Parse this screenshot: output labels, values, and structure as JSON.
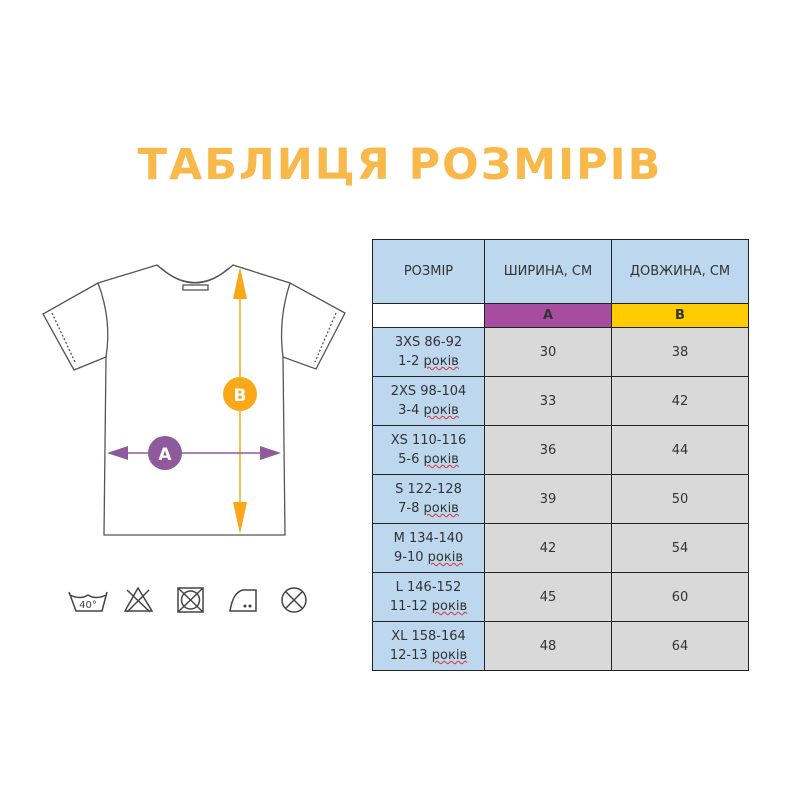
{
  "title": "ТАБЛИЦЯ РОЗМІРІВ",
  "diagram": {
    "label_a": "A",
    "label_b": "B",
    "color_a": "#8e5a9b",
    "color_b": "#f9a81a"
  },
  "care_icons": [
    {
      "icon": "wash-40-icon",
      "text": "40°"
    },
    {
      "icon": "no-bleach-icon"
    },
    {
      "icon": "no-tumble-dry-icon"
    },
    {
      "icon": "iron-medium-icon"
    },
    {
      "icon": "no-dry-clean-icon"
    }
  ],
  "table": {
    "headers": [
      "РОЗМІР",
      "ШИРИНА, СМ",
      "ДОВЖИНА, СМ"
    ],
    "markers": [
      "",
      "A",
      "B"
    ],
    "marker_colors": [
      "#ffffff",
      "#a64d9f",
      "#ffcc00"
    ],
    "rows": [
      {
        "size": "3XS 86-92",
        "age": "1-2",
        "age_unit": "років",
        "width": "30",
        "length": "38"
      },
      {
        "size": "2XS 98-104",
        "age": "3-4",
        "age_unit": "років",
        "width": "33",
        "length": "42"
      },
      {
        "size": "XS 110-116",
        "age": "5-6",
        "age_unit": "років",
        "width": "36",
        "length": "44"
      },
      {
        "size": "S 122-128",
        "age": "7-8",
        "age_unit": "років",
        "width": "39",
        "length": "50"
      },
      {
        "size": "M 134-140",
        "age": "9-10",
        "age_unit": "років",
        "width": "42",
        "length": "54"
      },
      {
        "size": "L 146-152",
        "age": "11-12",
        "age_unit": "років",
        "width": "45",
        "length": "60"
      },
      {
        "size": "XL 158-164",
        "age": "12-13",
        "age_unit": "років",
        "width": "48",
        "length": "64"
      }
    ]
  }
}
